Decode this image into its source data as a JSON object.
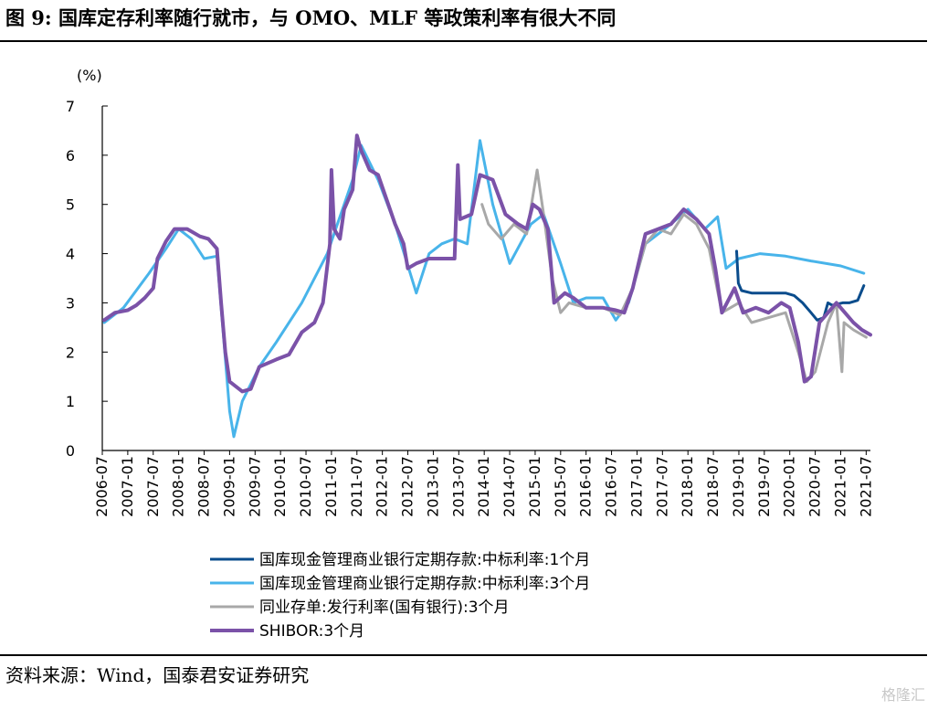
{
  "title": "图 9: 国库定存利率随行就市，与 OMO、MLF 等政策利率有很大不同",
  "source": "资料来源：Wind，国泰君安证券研究",
  "watermark": "格隆汇",
  "chart_data": {
    "type": "line",
    "ylabel": "(%)",
    "ylim": [
      0,
      7
    ],
    "yticks": [
      0,
      1,
      2,
      3,
      4,
      5,
      6,
      7
    ],
    "xlim": [
      "2006-07",
      "2021-08"
    ],
    "xticks": [
      "2006-07",
      "2007-01",
      "2007-07",
      "2008-01",
      "2008-07",
      "2009-01",
      "2009-07",
      "2010-01",
      "2010-07",
      "2011-01",
      "2011-07",
      "2012-01",
      "2012-07",
      "2013-01",
      "2013-07",
      "2014-01",
      "2014-07",
      "2015-01",
      "2015-07",
      "2016-01",
      "2016-07",
      "2017-01",
      "2017-07",
      "2018-01",
      "2018-07",
      "2019-01",
      "2019-07",
      "2020-01",
      "2020-07",
      "2021-01",
      "2021-07"
    ],
    "grid": false,
    "legend_position": "bottom",
    "series": [
      {
        "name": "国库现金管理商业银行定期存款:中标利率:1个月",
        "color": "#0a4c8c",
        "width": 3,
        "points": [
          [
            "2018-12-15",
            4.05
          ],
          [
            "2018-12-28",
            3.4
          ],
          [
            "2019-01-20",
            3.25
          ],
          [
            "2019-04-01",
            3.2
          ],
          [
            "2019-08-01",
            3.2
          ],
          [
            "2019-12-01",
            3.2
          ],
          [
            "2020-02-01",
            3.15
          ],
          [
            "2020-04-01",
            3.0
          ],
          [
            "2020-06-01",
            2.8
          ],
          [
            "2020-07-15",
            2.65
          ],
          [
            "2020-09-01",
            2.7
          ],
          [
            "2020-10-01",
            3.0
          ],
          [
            "2020-11-01",
            2.95
          ],
          [
            "2021-01-15",
            3.0
          ],
          [
            "2021-03-01",
            3.0
          ],
          [
            "2021-05-01",
            3.05
          ],
          [
            "2021-06-15",
            3.35
          ]
        ]
      },
      {
        "name": "国库现金管理商业银行定期存款:中标利率:3个月",
        "color": "#48b4ea",
        "width": 3,
        "points": [
          [
            "2006-07-15",
            2.6
          ],
          [
            "2006-12-01",
            2.9
          ],
          [
            "2007-06-01",
            3.6
          ],
          [
            "2007-10-01",
            4.1
          ],
          [
            "2008-01-01",
            4.5
          ],
          [
            "2008-04-01",
            4.3
          ],
          [
            "2008-07-01",
            3.9
          ],
          [
            "2008-10-01",
            3.95
          ],
          [
            "2009-01-01",
            0.8
          ],
          [
            "2009-02-01",
            0.28
          ],
          [
            "2009-04-01",
            1.0
          ],
          [
            "2009-08-01",
            1.7
          ],
          [
            "2009-12-01",
            2.2
          ],
          [
            "2010-06-01",
            3.0
          ],
          [
            "2010-12-01",
            4.0
          ],
          [
            "2011-06-01",
            5.5
          ],
          [
            "2011-08-01",
            6.2
          ],
          [
            "2011-12-01",
            5.5
          ],
          [
            "2012-04-01",
            4.6
          ],
          [
            "2012-09-01",
            3.2
          ],
          [
            "2012-12-01",
            4.0
          ],
          [
            "2013-03-01",
            4.2
          ],
          [
            "2013-06-01",
            4.3
          ],
          [
            "2013-09-01",
            4.2
          ],
          [
            "2013-12-01",
            6.3
          ],
          [
            "2014-03-01",
            5.0
          ],
          [
            "2014-07-01",
            3.8
          ],
          [
            "2014-12-01",
            4.6
          ],
          [
            "2015-03-01",
            4.8
          ],
          [
            "2015-07-01",
            3.8
          ],
          [
            "2015-10-01",
            3.0
          ],
          [
            "2016-01-01",
            3.1
          ],
          [
            "2016-05-01",
            3.1
          ],
          [
            "2016-08-01",
            2.65
          ],
          [
            "2016-11-01",
            3.0
          ],
          [
            "2017-03-01",
            4.2
          ],
          [
            "2017-09-01",
            4.6
          ],
          [
            "2018-01-01",
            4.9
          ],
          [
            "2018-05-01",
            4.5
          ],
          [
            "2018-08-01",
            4.75
          ],
          [
            "2018-10-01",
            3.7
          ],
          [
            "2019-01-01",
            3.9
          ],
          [
            "2019-06-01",
            4.0
          ],
          [
            "2019-12-01",
            3.95
          ],
          [
            "2020-06-01",
            3.85
          ],
          [
            "2021-01-01",
            3.75
          ],
          [
            "2021-06-15",
            3.6
          ]
        ]
      },
      {
        "name": "同业存单:发行利率(国有银行):3个月",
        "color": "#a8a8a8",
        "width": 3,
        "points": [
          [
            "2013-12-15",
            5.0
          ],
          [
            "2014-02-01",
            4.6
          ],
          [
            "2014-05-01",
            4.3
          ],
          [
            "2014-08-01",
            4.6
          ],
          [
            "2014-11-01",
            4.4
          ],
          [
            "2015-01-15",
            5.7
          ],
          [
            "2015-03-01",
            4.8
          ],
          [
            "2015-05-01",
            3.5
          ],
          [
            "2015-07-01",
            2.8
          ],
          [
            "2015-09-01",
            3.0
          ],
          [
            "2016-01-01",
            2.9
          ],
          [
            "2016-05-01",
            2.9
          ],
          [
            "2016-09-01",
            2.75
          ],
          [
            "2016-12-01",
            3.3
          ],
          [
            "2017-03-01",
            4.2
          ],
          [
            "2017-06-01",
            4.5
          ],
          [
            "2017-09-01",
            4.4
          ],
          [
            "2017-12-01",
            4.8
          ],
          [
            "2018-03-01",
            4.6
          ],
          [
            "2018-06-01",
            4.1
          ],
          [
            "2018-09-01",
            2.8
          ],
          [
            "2019-01-01",
            3.0
          ],
          [
            "2019-04-01",
            2.6
          ],
          [
            "2019-08-01",
            2.7
          ],
          [
            "2019-12-01",
            2.8
          ],
          [
            "2020-03-01",
            2.0
          ],
          [
            "2020-05-01",
            1.4
          ],
          [
            "2020-07-01",
            1.6
          ],
          [
            "2020-10-01",
            2.6
          ],
          [
            "2020-12-01",
            3.0
          ],
          [
            "2021-01-10",
            1.6
          ],
          [
            "2021-01-25",
            2.6
          ],
          [
            "2021-04-01",
            2.45
          ],
          [
            "2021-07-01",
            2.3
          ]
        ]
      },
      {
        "name": "SHIBOR:3个月",
        "color": "#7b52a8",
        "width": 4,
        "points": [
          [
            "2006-07-15",
            2.65
          ],
          [
            "2006-10-01",
            2.8
          ],
          [
            "2007-01-01",
            2.85
          ],
          [
            "2007-03-01",
            2.95
          ],
          [
            "2007-05-01",
            3.1
          ],
          [
            "2007-07-01",
            3.3
          ],
          [
            "2007-08-01",
            3.9
          ],
          [
            "2007-10-01",
            4.25
          ],
          [
            "2007-12-01",
            4.5
          ],
          [
            "2008-03-01",
            4.5
          ],
          [
            "2008-06-01",
            4.35
          ],
          [
            "2008-08-01",
            4.3
          ],
          [
            "2008-10-01",
            4.1
          ],
          [
            "2008-11-01",
            3.0
          ],
          [
            "2008-12-01",
            2.0
          ],
          [
            "2009-01-01",
            1.4
          ],
          [
            "2009-04-01",
            1.2
          ],
          [
            "2009-06-01",
            1.25
          ],
          [
            "2009-08-01",
            1.7
          ],
          [
            "2009-12-01",
            1.85
          ],
          [
            "2010-03-01",
            1.95
          ],
          [
            "2010-06-01",
            2.4
          ],
          [
            "2010-09-01",
            2.6
          ],
          [
            "2010-11-01",
            3.0
          ],
          [
            "2010-12-20",
            4.2
          ],
          [
            "2011-01-01",
            5.7
          ],
          [
            "2011-01-20",
            4.5
          ],
          [
            "2011-03-01",
            4.3
          ],
          [
            "2011-04-01",
            4.9
          ],
          [
            "2011-06-01",
            5.3
          ],
          [
            "2011-07-01",
            6.4
          ],
          [
            "2011-08-01",
            6.1
          ],
          [
            "2011-10-01",
            5.7
          ],
          [
            "2011-12-01",
            5.6
          ],
          [
            "2012-02-01",
            5.1
          ],
          [
            "2012-04-01",
            4.6
          ],
          [
            "2012-06-01",
            4.2
          ],
          [
            "2012-07-01",
            3.7
          ],
          [
            "2012-09-01",
            3.8
          ],
          [
            "2012-12-01",
            3.9
          ],
          [
            "2013-06-01",
            3.9
          ],
          [
            "2013-06-25",
            5.8
          ],
          [
            "2013-07-10",
            4.7
          ],
          [
            "2013-10-01",
            4.8
          ],
          [
            "2013-12-01",
            5.6
          ],
          [
            "2014-03-01",
            5.5
          ],
          [
            "2014-06-01",
            4.8
          ],
          [
            "2014-09-01",
            4.6
          ],
          [
            "2014-11-01",
            4.5
          ],
          [
            "2014-12-15",
            5.0
          ],
          [
            "2015-02-01",
            4.9
          ],
          [
            "2015-04-01",
            4.5
          ],
          [
            "2015-05-15",
            3.0
          ],
          [
            "2015-08-01",
            3.2
          ],
          [
            "2015-10-01",
            3.1
          ],
          [
            "2016-01-01",
            2.9
          ],
          [
            "2016-05-01",
            2.9
          ],
          [
            "2016-08-01",
            2.85
          ],
          [
            "2016-10-01",
            2.8
          ],
          [
            "2016-12-01",
            3.3
          ],
          [
            "2017-03-01",
            4.4
          ],
          [
            "2017-06-01",
            4.5
          ],
          [
            "2017-09-01",
            4.6
          ],
          [
            "2017-12-01",
            4.9
          ],
          [
            "2018-03-01",
            4.7
          ],
          [
            "2018-06-01",
            4.4
          ],
          [
            "2018-07-15",
            3.7
          ],
          [
            "2018-09-01",
            2.8
          ],
          [
            "2018-12-01",
            3.3
          ],
          [
            "2019-02-01",
            2.8
          ],
          [
            "2019-05-01",
            2.9
          ],
          [
            "2019-08-01",
            2.8
          ],
          [
            "2019-11-01",
            3.0
          ],
          [
            "2020-01-01",
            2.9
          ],
          [
            "2020-03-01",
            2.2
          ],
          [
            "2020-04-15",
            1.4
          ],
          [
            "2020-06-01",
            1.5
          ],
          [
            "2020-08-01",
            2.6
          ],
          [
            "2020-10-01",
            2.8
          ],
          [
            "2020-12-01",
            3.0
          ],
          [
            "2021-02-01",
            2.8
          ],
          [
            "2021-04-01",
            2.6
          ],
          [
            "2021-06-01",
            2.45
          ],
          [
            "2021-08-01",
            2.35
          ]
        ]
      }
    ]
  }
}
